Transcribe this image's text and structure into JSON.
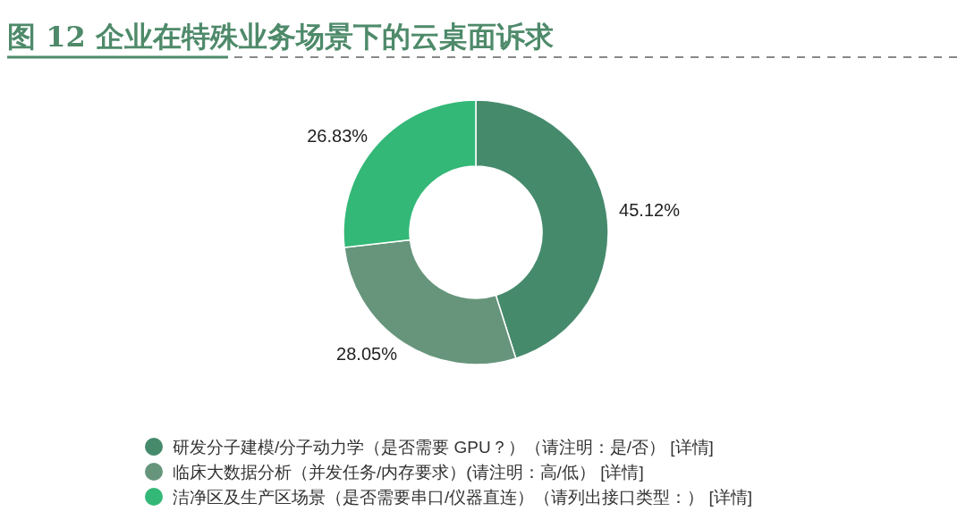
{
  "chart_data": {
    "type": "donut",
    "title": "图 12   企业在特殊业务场景下的云桌面诉求",
    "categories": [
      "研发分子建模/分子动力学（是否需要 GPU？）（请注明：是/否） [详情]",
      "临床大数据分析（并发任务/内存要求）(请注明：高/低） [详情]",
      "洁净区及生产区场景（是否需要串口/仪器直连）（请列出接口类型：） [详情]"
    ],
    "values": [
      45.12,
      28.05,
      26.83
    ],
    "colors": [
      "#468a6c",
      "#66957b",
      "#33b877"
    ],
    "value_labels": [
      "45.12%",
      "28.05%",
      "26.83%"
    ],
    "legend": "bottom"
  }
}
